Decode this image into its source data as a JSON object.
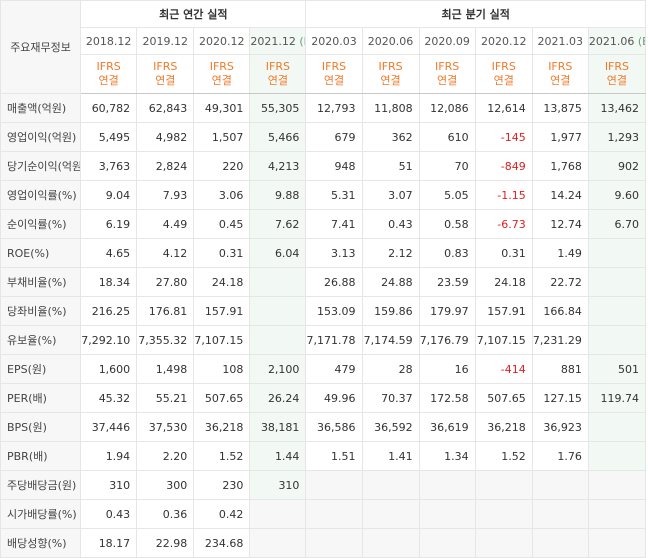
{
  "header": {
    "corner": "주요재무정보",
    "annual_group": "최근 연간 실적",
    "quarter_group": "최근 분기 실적",
    "periods": [
      "2018.12",
      "2019.12",
      "2020.12",
      "2021.12",
      "2020.03",
      "2020.06",
      "2020.09",
      "2020.12",
      "2021.03",
      "2021.06"
    ],
    "estimate_mark": "(E)",
    "ifrs_line1": "IFRS",
    "ifrs_line2": "연결"
  },
  "rows": [
    {
      "label": "매출액(억원)",
      "values": [
        "60,782",
        "62,843",
        "49,301",
        "55,305",
        "12,793",
        "11,808",
        "12,086",
        "12,614",
        "13,875",
        "13,462"
      ]
    },
    {
      "label": "영업이익(억원)",
      "values": [
        "5,495",
        "4,982",
        "1,507",
        "5,466",
        "679",
        "362",
        "610",
        "-145",
        "1,977",
        "1,293"
      ]
    },
    {
      "label": "당기순이익(억원)",
      "values": [
        "3,763",
        "2,824",
        "220",
        "4,213",
        "948",
        "51",
        "70",
        "-849",
        "1,768",
        "902"
      ]
    },
    {
      "label": "영업이익률(%)",
      "values": [
        "9.04",
        "7.93",
        "3.06",
        "9.88",
        "5.31",
        "3.07",
        "5.05",
        "-1.15",
        "14.24",
        "9.60"
      ]
    },
    {
      "label": "순이익률(%)",
      "values": [
        "6.19",
        "4.49",
        "0.45",
        "7.62",
        "7.41",
        "0.43",
        "0.58",
        "-6.73",
        "12.74",
        "6.70"
      ]
    },
    {
      "label": "ROE(%)",
      "values": [
        "4.65",
        "4.12",
        "0.31",
        "6.04",
        "3.13",
        "2.12",
        "0.83",
        "0.31",
        "1.49",
        ""
      ]
    },
    {
      "label": "부채비율(%)",
      "values": [
        "18.34",
        "27.80",
        "24.18",
        "",
        "26.88",
        "24.88",
        "23.59",
        "24.18",
        "22.72",
        ""
      ]
    },
    {
      "label": "당좌비율(%)",
      "values": [
        "216.25",
        "176.81",
        "157.91",
        "",
        "153.09",
        "159.86",
        "179.97",
        "157.91",
        "166.84",
        ""
      ]
    },
    {
      "label": "유보율(%)",
      "values": [
        "7,292.10",
        "7,355.32",
        "7,107.15",
        "",
        "7,171.78",
        "7,174.59",
        "7,176.79",
        "7,107.15",
        "7,231.29",
        ""
      ]
    },
    {
      "label": "EPS(원)",
      "values": [
        "1,600",
        "1,498",
        "108",
        "2,100",
        "479",
        "28",
        "16",
        "-414",
        "881",
        "501"
      ]
    },
    {
      "label": "PER(배)",
      "values": [
        "45.32",
        "55.21",
        "507.65",
        "26.24",
        "49.96",
        "70.37",
        "172.58",
        "507.65",
        "127.15",
        "119.74"
      ]
    },
    {
      "label": "BPS(원)",
      "values": [
        "37,446",
        "37,530",
        "36,218",
        "38,181",
        "36,586",
        "36,592",
        "36,619",
        "36,218",
        "36,923",
        ""
      ]
    },
    {
      "label": "PBR(배)",
      "values": [
        "1.94",
        "2.20",
        "1.52",
        "1.44",
        "1.51",
        "1.41",
        "1.34",
        "1.52",
        "1.76",
        ""
      ]
    },
    {
      "label": "주당배당금(원)",
      "values": [
        "310",
        "300",
        "230",
        "310",
        "",
        "",
        "",
        "",
        "",
        ""
      ]
    },
    {
      "label": "시가배당률(%)",
      "values": [
        "0.43",
        "0.36",
        "0.42",
        "",
        "",
        "",
        "",
        "",
        "",
        ""
      ]
    },
    {
      "label": "배당성향(%)",
      "values": [
        "18.17",
        "22.98",
        "234.68",
        "",
        "",
        "",
        "",
        "",
        "",
        ""
      ]
    }
  ]
}
